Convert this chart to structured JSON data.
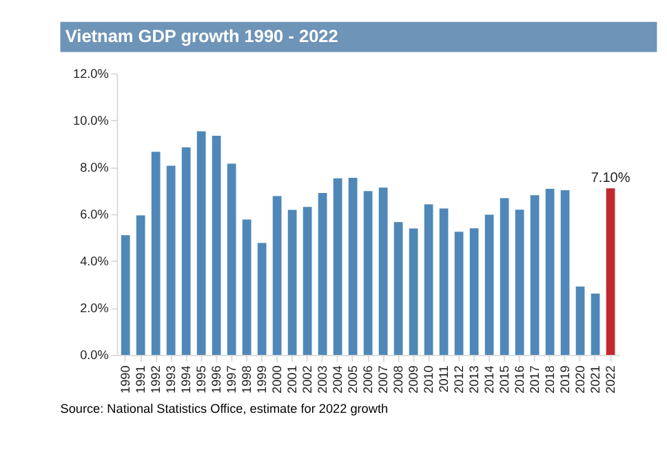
{
  "chart_data": {
    "type": "bar",
    "title": "Vietnam GDP growth 1990 - 2022",
    "categories": [
      "1990",
      "1991",
      "1992",
      "1993",
      "1994",
      "1995",
      "1996",
      "1997",
      "1998",
      "1999",
      "2000",
      "2001",
      "2002",
      "2003",
      "2004",
      "2005",
      "2006",
      "2007",
      "2008",
      "2009",
      "2010",
      "2011",
      "2012",
      "2013",
      "2014",
      "2015",
      "2016",
      "2017",
      "2018",
      "2019",
      "2020",
      "2021",
      "2022"
    ],
    "values": [
      5.1,
      5.95,
      8.66,
      8.06,
      8.85,
      9.53,
      9.34,
      8.15,
      5.77,
      4.77,
      6.77,
      6.18,
      6.31,
      6.9,
      7.53,
      7.55,
      6.98,
      7.13,
      5.66,
      5.39,
      6.42,
      6.24,
      5.25,
      5.4,
      5.98,
      6.68,
      6.19,
      6.81,
      7.08,
      7.02,
      2.91,
      2.61,
      7.1
    ],
    "colors": [
      "#4f88b8",
      "#4f88b8",
      "#4f88b8",
      "#4f88b8",
      "#4f88b8",
      "#4f88b8",
      "#4f88b8",
      "#4f88b8",
      "#4f88b8",
      "#4f88b8",
      "#4f88b8",
      "#4f88b8",
      "#4f88b8",
      "#4f88b8",
      "#4f88b8",
      "#4f88b8",
      "#4f88b8",
      "#4f88b8",
      "#4f88b8",
      "#4f88b8",
      "#4f88b8",
      "#4f88b8",
      "#4f88b8",
      "#4f88b8",
      "#4f88b8",
      "#4f88b8",
      "#4f88b8",
      "#4f88b8",
      "#4f88b8",
      "#4f88b8",
      "#4f88b8",
      "#4f88b8",
      "#c0282d"
    ],
    "value_labels": [
      null,
      null,
      null,
      null,
      null,
      null,
      null,
      null,
      null,
      null,
      null,
      null,
      null,
      null,
      null,
      null,
      null,
      null,
      null,
      null,
      null,
      null,
      null,
      null,
      null,
      null,
      null,
      null,
      null,
      null,
      null,
      null,
      "7.10%"
    ],
    "ylim": [
      0,
      12
    ],
    "yticks": [
      {
        "value": 0,
        "label": "0.0%"
      },
      {
        "value": 2,
        "label": "2.0%"
      },
      {
        "value": 4,
        "label": "4.0%"
      },
      {
        "value": 6,
        "label": "6.0%"
      },
      {
        "value": 8,
        "label": "8.0%"
      },
      {
        "value": 10,
        "label": "10.0%"
      },
      {
        "value": 12,
        "label": "12.0%"
      }
    ],
    "grid": false,
    "annotations": [
      "Source: National Statistics Office, estimate for 2022 growth"
    ]
  }
}
